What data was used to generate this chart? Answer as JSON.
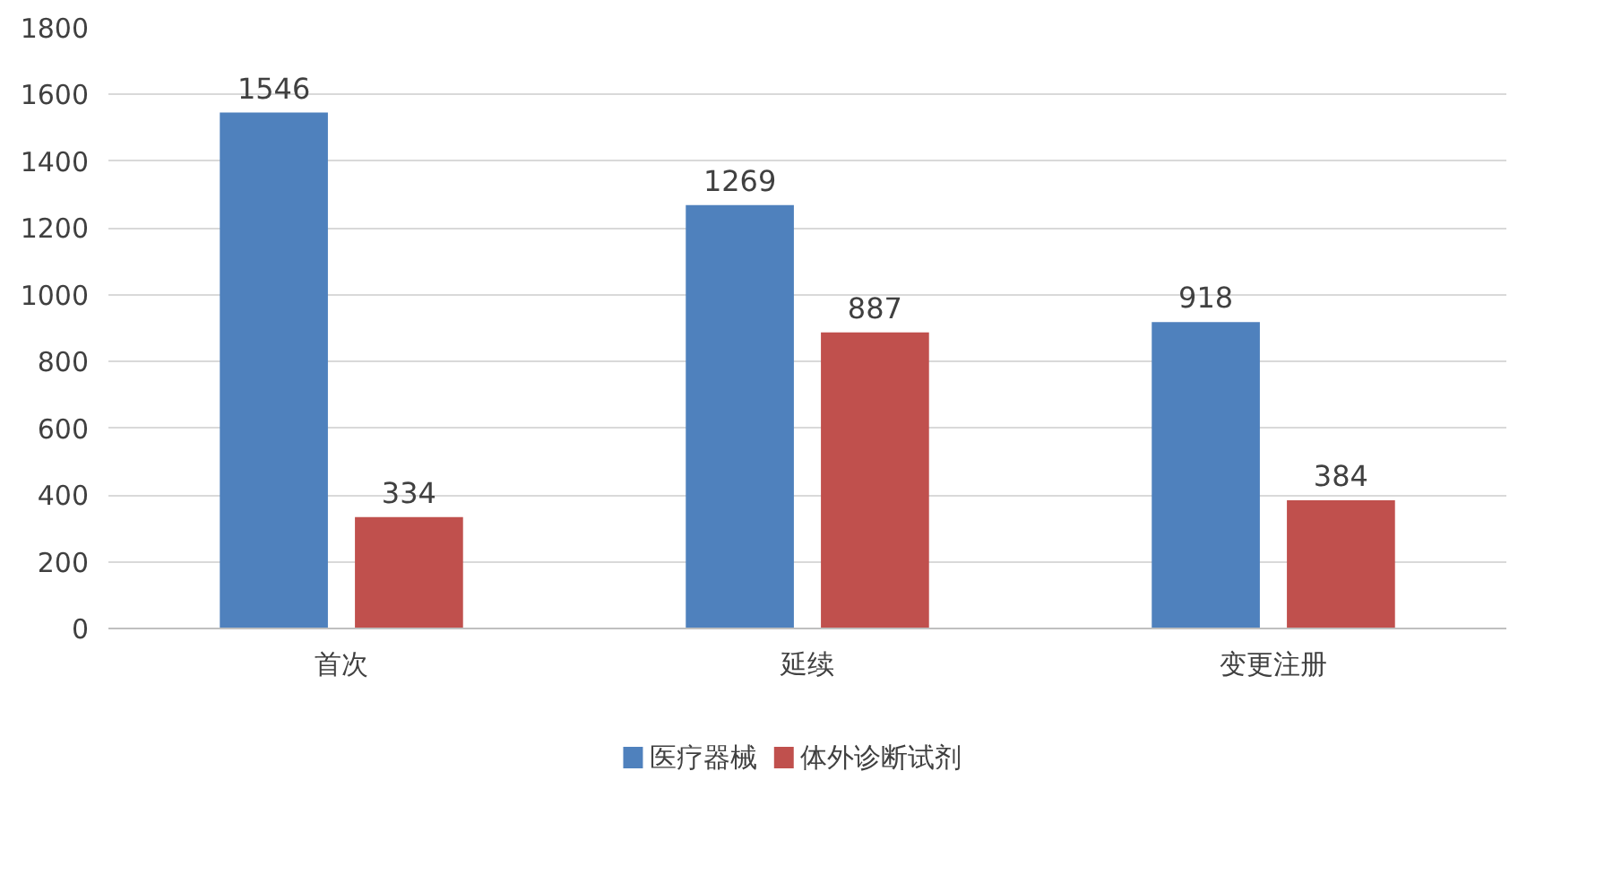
{
  "chart_data": {
    "type": "bar",
    "categories": [
      "首次",
      "延续",
      "变更注册"
    ],
    "series": [
      {
        "name": "医疗器械",
        "color": "#4f81bd",
        "values": [
          1546,
          1269,
          918
        ]
      },
      {
        "name": "体外诊断试剂",
        "color": "#c0504d",
        "values": [
          334,
          887,
          384
        ]
      }
    ],
    "ylim": [
      0,
      1800
    ],
    "yticks": [
      0,
      200,
      400,
      600,
      800,
      1000,
      1200,
      1400,
      1600,
      1800
    ],
    "grid": "y",
    "legend": "bottom",
    "data_labels": true
  }
}
